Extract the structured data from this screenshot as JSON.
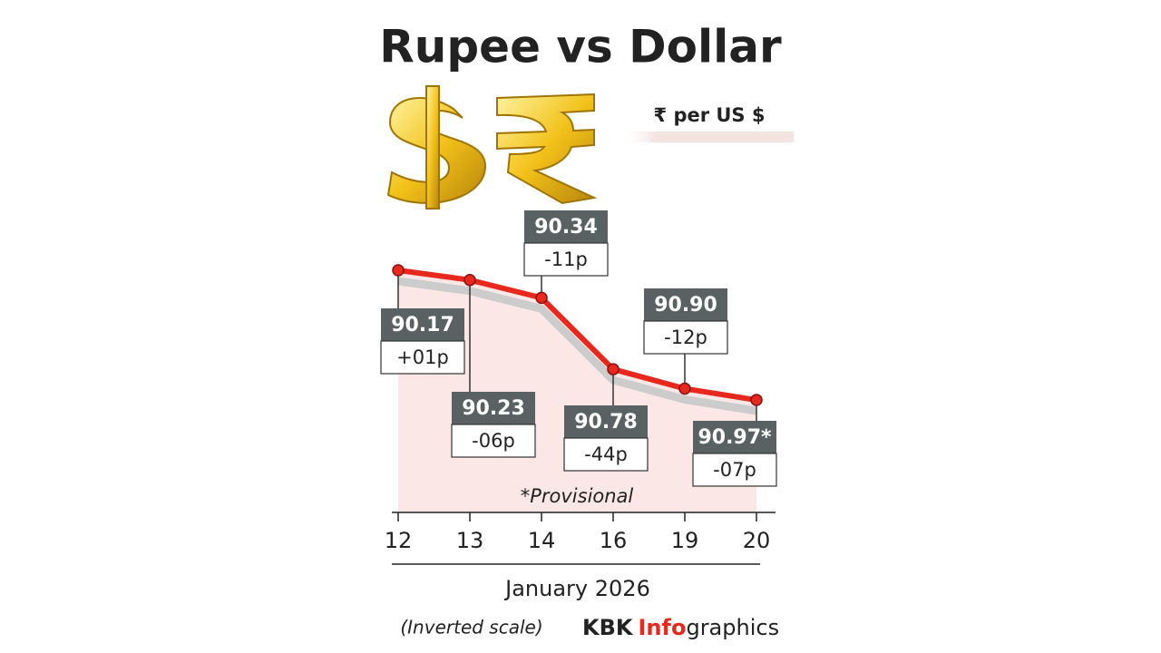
{
  "chart_data": {
    "type": "line",
    "title": "Rupee vs Dollar",
    "unit_label": "₹ per US $",
    "categories": [
      "12",
      "13",
      "14",
      "16",
      "19",
      "20"
    ],
    "values": [
      90.17,
      90.23,
      90.34,
      90.78,
      90.9,
      90.97
    ],
    "value_labels": [
      "90.17",
      "90.23",
      "90.34",
      "90.78",
      "90.90",
      "90.97*"
    ],
    "change_labels": [
      "+01p",
      "-06p",
      "-11p",
      "-44p",
      "-12p",
      "-07p"
    ],
    "ylim": [
      90.0,
      91.0
    ],
    "inverted": true,
    "color": "#e8281c",
    "note": "*Provisional",
    "x_label": "January 2026",
    "scale_note": "(Inverted scale)",
    "credit": [
      "KBK",
      "Info",
      "graphics"
    ]
  }
}
